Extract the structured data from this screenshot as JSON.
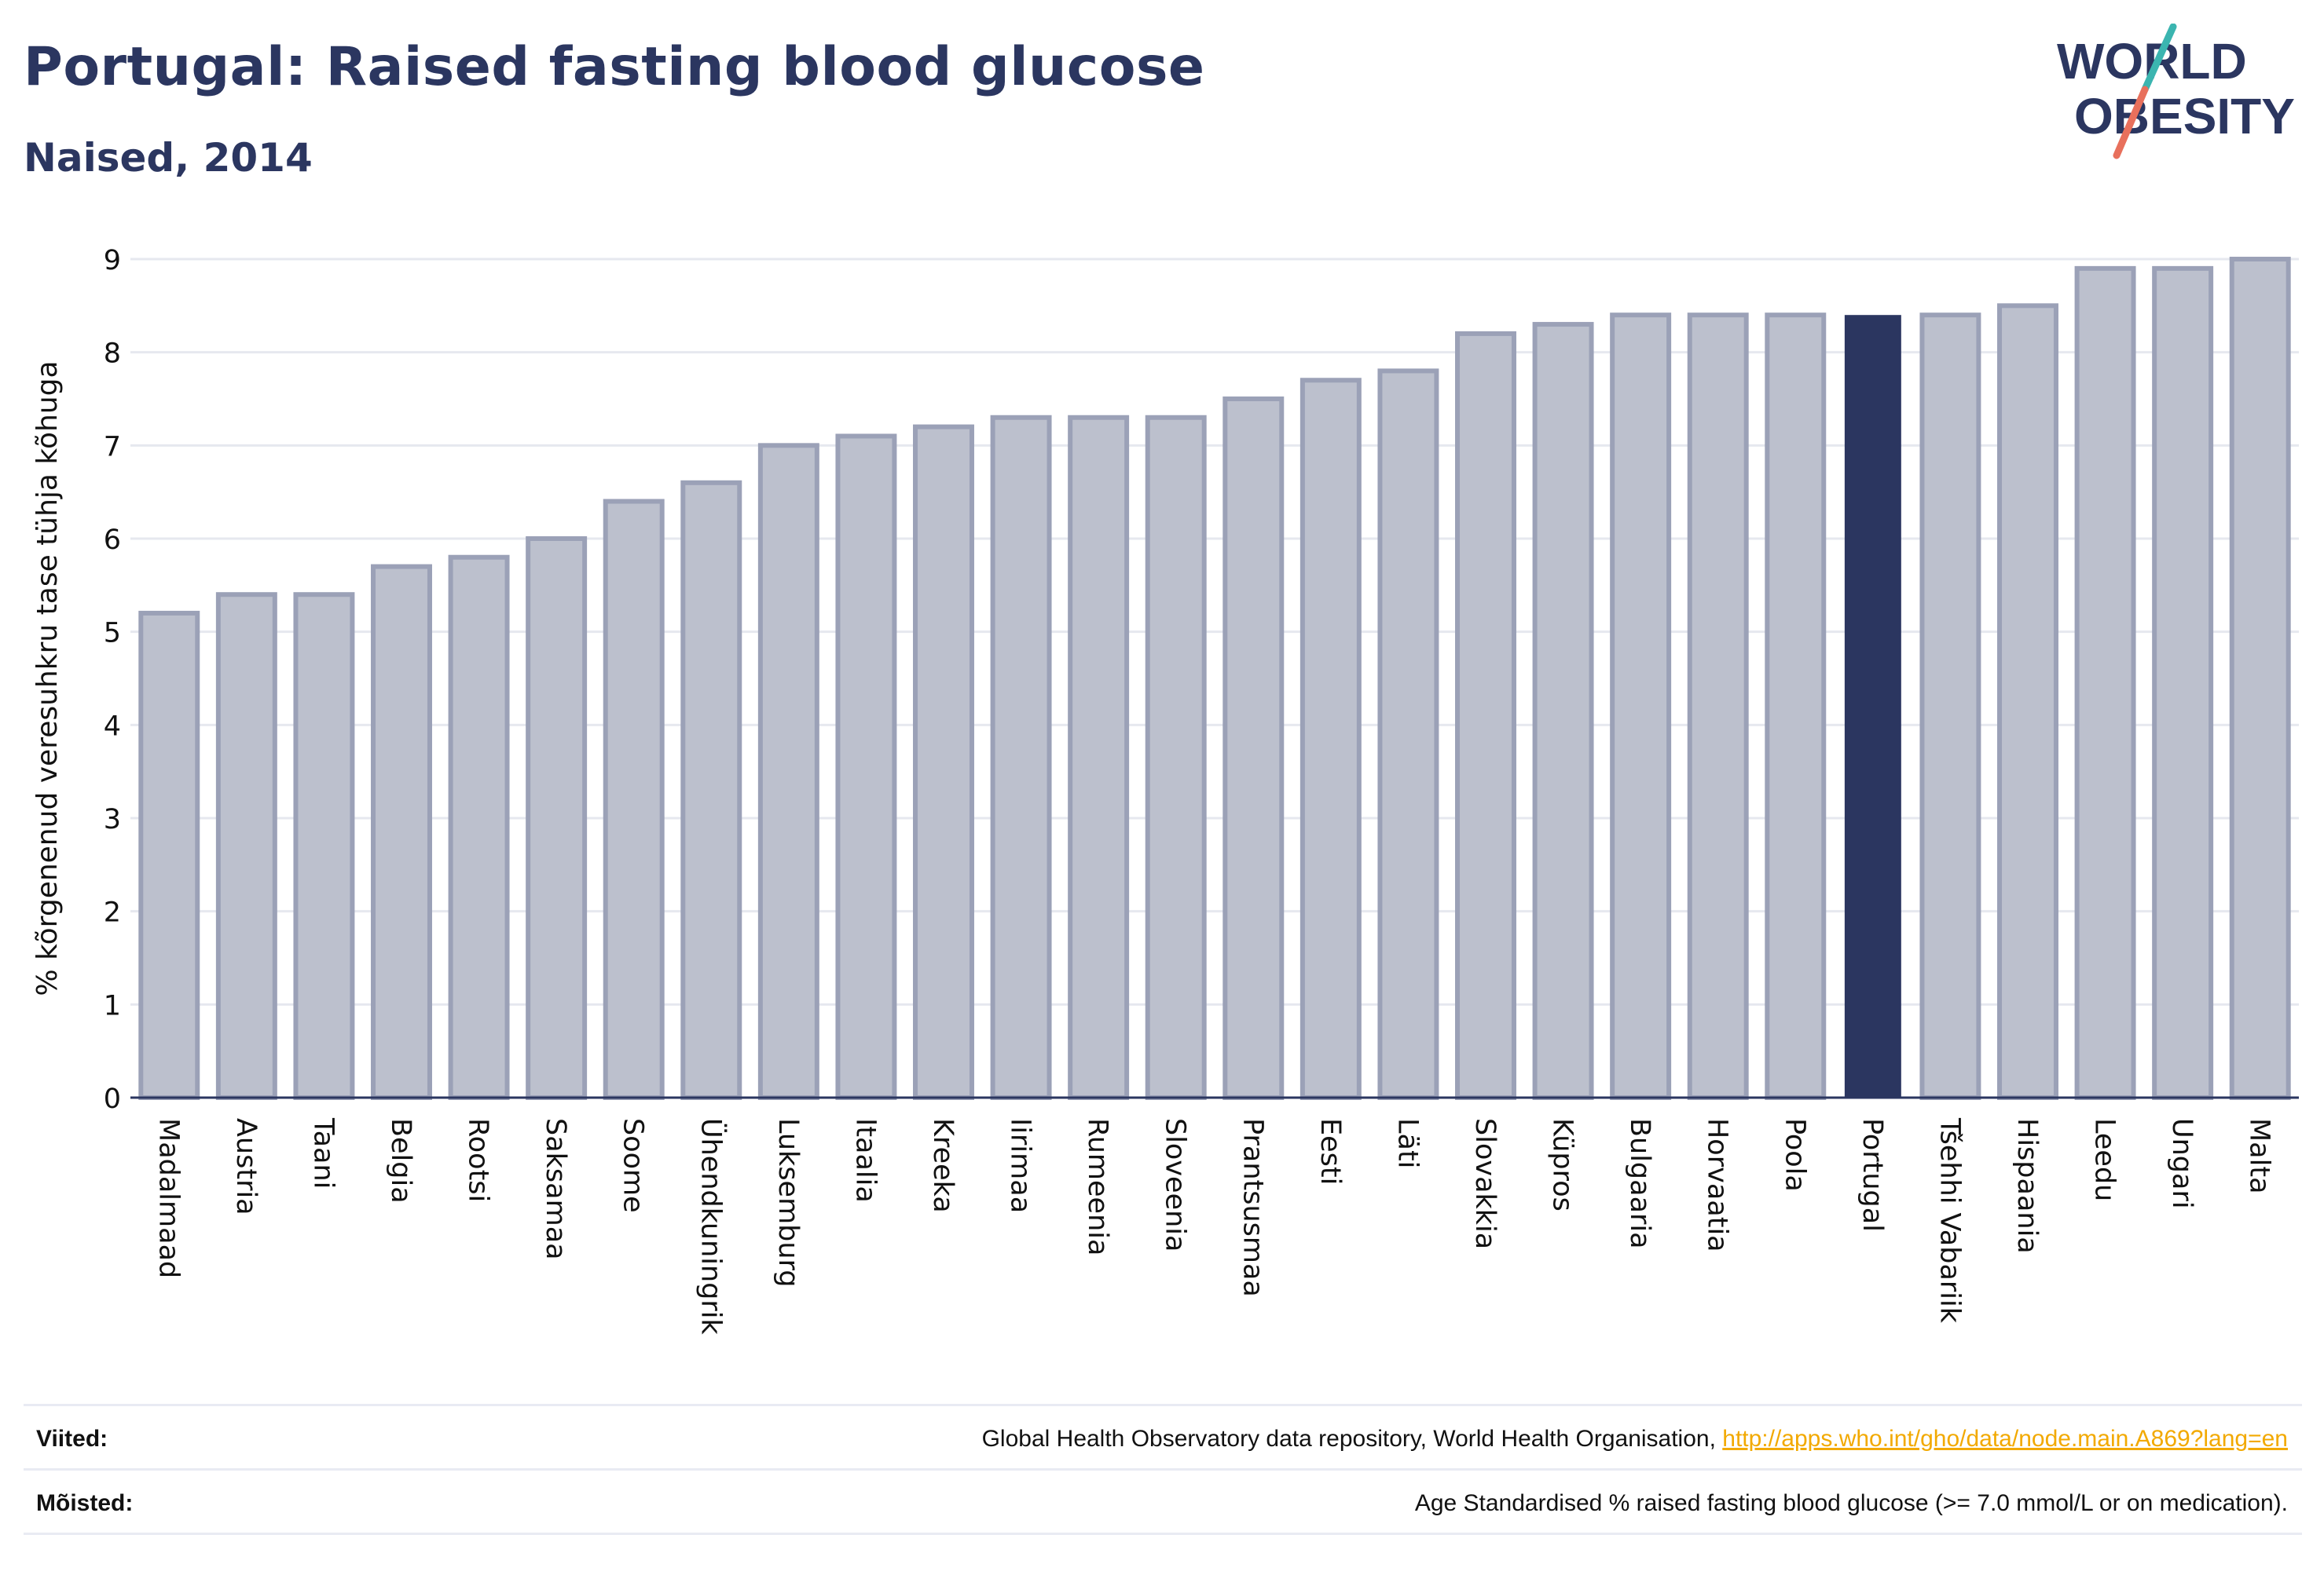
{
  "header": {
    "title": "Portugal: Raised fasting blood glucose",
    "subtitle": "Naised, 2014"
  },
  "logo": {
    "line1": "WORLD",
    "line2": "OBESITY",
    "text_color": "#2b3660",
    "accent_teal": "#3bb5b0",
    "accent_red": "#e8705c"
  },
  "colors": {
    "bar_fill": "#bcc0cd",
    "bar_stroke": "#9ba1b7",
    "highlight_fill": "#2b3660",
    "grid": "#e6e8ef",
    "axis": "#2b3660"
  },
  "chart_data": {
    "type": "bar",
    "title": "Portugal: Raised fasting blood glucose",
    "subtitle": "Naised, 2014",
    "ylabel": "% kõrgenenud veresuhkru tase tühja kõhuga",
    "xlabel": "",
    "ylim": [
      0,
      9
    ],
    "yticks": [
      0,
      1,
      2,
      3,
      4,
      5,
      6,
      7,
      8,
      9
    ],
    "grid": true,
    "highlight": "Portugal",
    "categories": [
      "Madalmaad",
      "Austria",
      "Taani",
      "Belgia",
      "Rootsi",
      "Saksamaa",
      "Soome",
      "Ühendkuningrik",
      "Luksemburg",
      "Itaalia",
      "Kreeka",
      "Iirimaa",
      "Rumeenia",
      "Sloveenia",
      "Prantsusmaa",
      "Eesti",
      "Läti",
      "Slovakkia",
      "Küpros",
      "Bulgaaria",
      "Horvaatia",
      "Poola",
      "Portugal",
      "Tšehhi Vabariik",
      "Hispaania",
      "Leedu",
      "Ungari",
      "Malta"
    ],
    "values": [
      5.2,
      5.4,
      5.4,
      5.7,
      5.8,
      6.0,
      6.4,
      6.6,
      7.0,
      7.1,
      7.2,
      7.3,
      7.3,
      7.3,
      7.5,
      7.7,
      7.8,
      8.2,
      8.3,
      8.4,
      8.4,
      8.4,
      8.4,
      8.4,
      8.5,
      8.9,
      8.9,
      9.0
    ]
  },
  "footer": {
    "sources_label": "Viited:",
    "sources_text": "Global Health Observatory data repository, World Health Organisation, ",
    "sources_link": "http://apps.who.int/gho/data/node.main.A869?lang=en",
    "definitions_label": "Mõisted:",
    "definitions_text": "Age Standardised % raised fasting blood glucose (>= 7.0 mmol/L or on medication)."
  }
}
